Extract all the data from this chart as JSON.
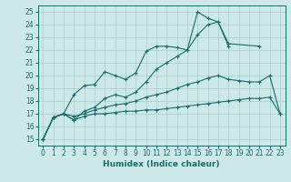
{
  "xlabel": "Humidex (Indice chaleur)",
  "background_color": "#cce8e8",
  "grid_color": "#aacccc",
  "line_color": "#1a6b6b",
  "xlim": [
    -0.5,
    23.5
  ],
  "ylim": [
    14.5,
    25.5
  ],
  "xticks": [
    0,
    1,
    2,
    3,
    4,
    5,
    6,
    7,
    8,
    9,
    10,
    11,
    12,
    13,
    14,
    15,
    16,
    17,
    18,
    19,
    20,
    21,
    22,
    23
  ],
  "yticks": [
    15,
    16,
    17,
    18,
    19,
    20,
    21,
    22,
    23,
    24,
    25
  ],
  "series": [
    {
      "x": [
        0,
        1,
        2,
        3,
        4,
        5,
        6,
        7,
        8,
        9,
        10,
        11,
        12,
        13,
        14,
        15,
        16,
        17,
        18,
        21
      ],
      "y": [
        15.0,
        16.7,
        17.0,
        18.5,
        19.2,
        19.3,
        20.3,
        20.0,
        19.7,
        20.2,
        21.9,
        22.3,
        22.3,
        22.2,
        22.0,
        25.0,
        24.5,
        24.2,
        22.5,
        22.3
      ]
    },
    {
      "x": [
        0,
        1,
        2,
        3,
        4,
        5,
        6,
        7,
        8,
        9,
        10,
        11,
        12,
        13,
        14,
        15,
        16,
        17,
        18
      ],
      "y": [
        15.0,
        16.7,
        17.0,
        16.5,
        17.2,
        17.5,
        18.2,
        18.5,
        18.3,
        18.7,
        19.5,
        20.5,
        21.0,
        21.5,
        22.0,
        23.2,
        24.0,
        24.2,
        22.3
      ]
    },
    {
      "x": [
        0,
        1,
        2,
        3,
        4,
        5,
        6,
        7,
        8,
        9,
        10,
        11,
        12,
        13,
        14,
        15,
        16,
        17,
        18,
        19,
        20,
        21,
        22,
        23
      ],
      "y": [
        15.0,
        16.7,
        17.0,
        16.8,
        17.0,
        17.3,
        17.5,
        17.7,
        17.8,
        18.0,
        18.3,
        18.5,
        18.7,
        19.0,
        19.3,
        19.5,
        19.8,
        20.0,
        19.7,
        19.6,
        19.5,
        19.5,
        20.0,
        17.0
      ]
    },
    {
      "x": [
        0,
        1,
        2,
        3,
        4,
        5,
        6,
        7,
        8,
        9,
        10,
        11,
        12,
        13,
        14,
        15,
        16,
        17,
        18,
        19,
        20,
        21,
        22,
        23
      ],
      "y": [
        15.0,
        16.7,
        17.0,
        16.5,
        16.8,
        17.0,
        17.0,
        17.1,
        17.2,
        17.2,
        17.3,
        17.3,
        17.4,
        17.5,
        17.6,
        17.7,
        17.8,
        17.9,
        18.0,
        18.1,
        18.2,
        18.2,
        18.3,
        17.0
      ]
    }
  ]
}
